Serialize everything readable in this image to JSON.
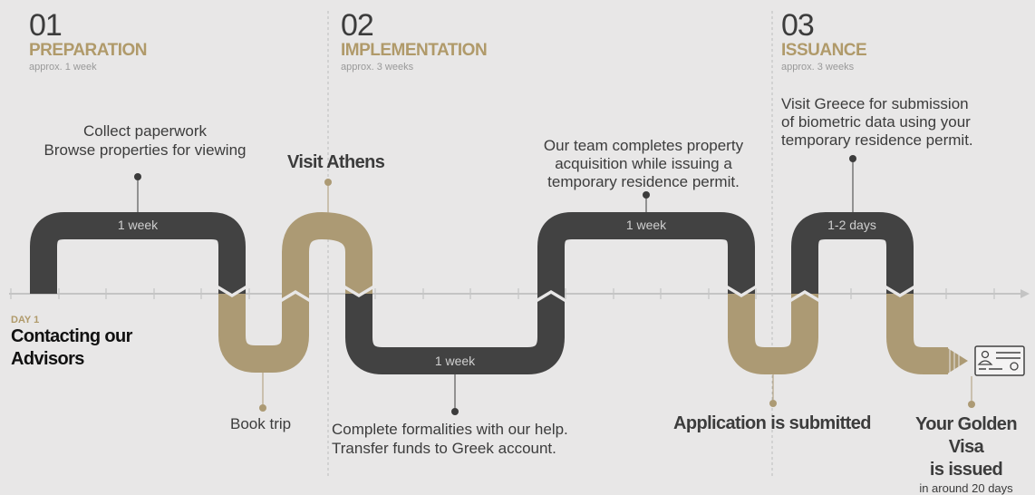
{
  "colors": {
    "background": "#e8e7e7",
    "dark_track": "#424242",
    "gold_track": "#ac9a74",
    "accent_text": "#b09a6a",
    "axis": "#c4c4c4"
  },
  "phases": [
    {
      "number": "01",
      "name": "PREPARATION",
      "duration": "approx. 1 week"
    },
    {
      "number": "02",
      "name": "IMPLEMENTATION",
      "duration": "approx. 3 weeks"
    },
    {
      "number": "03",
      "name": "ISSUANCE",
      "duration": "approx. 3 weeks"
    }
  ],
  "track_labels": {
    "segment1": "1 week",
    "segment2": "1 week",
    "segment3": "1 week",
    "segment4": "1-2 days"
  },
  "steps": {
    "day_label": "DAY 1",
    "start_line1": "Contacting our",
    "start_line2": "Advisors",
    "collect_line1": "Collect paperwork",
    "collect_line2": "Browse properties for viewing",
    "book_trip": "Book trip",
    "visit_athens": "Visit Athens",
    "formalities_line1": "Complete formalities with our help.",
    "formalities_line2": "Transfer funds to Greek account.",
    "acquisition_line1": "Our team completes property",
    "acquisition_line2": "acquisition while issuing a",
    "acquisition_line3": "temporary residence permit.",
    "submitted": "Application is submitted",
    "biometric_line1": "Visit Greece for submission",
    "biometric_line2": "of biometric data using your",
    "biometric_line3": "temporary residence permit.",
    "visa_line1": "Your Golden Visa",
    "visa_line2": "is issued",
    "visa_line3": "in around 20 days"
  },
  "icons": {
    "visa_card": "id-card-icon"
  }
}
